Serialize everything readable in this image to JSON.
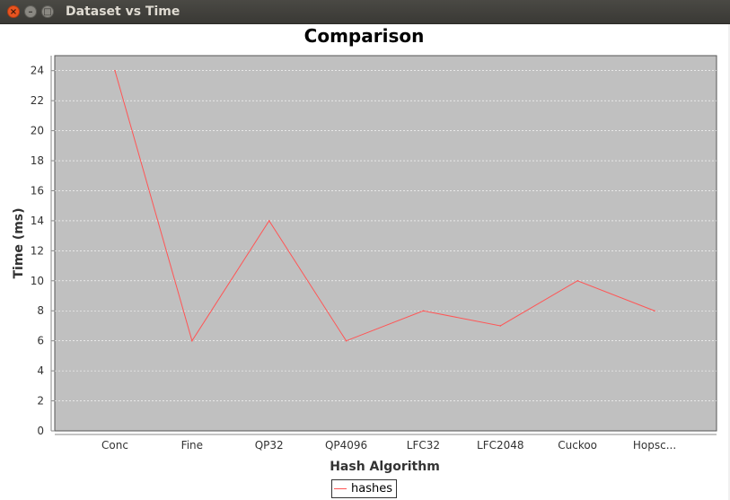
{
  "window": {
    "title": "Dataset vs Time",
    "close_glyph": "×",
    "min_glyph": "–",
    "max_glyph": "□"
  },
  "chart_data": {
    "type": "line",
    "title": "Comparison",
    "xlabel": "Hash Algorithm",
    "ylabel": "Time (ms)",
    "categories": [
      "Conc",
      "Fine",
      "QP32",
      "QP4096",
      "LFC32",
      "LFC2048",
      "Cuckoo",
      "Hopsc..."
    ],
    "series": [
      {
        "name": "hashes",
        "values": [
          24,
          6,
          14,
          6,
          8,
          7,
          10,
          8
        ],
        "color": "#ff5555"
      }
    ],
    "ylim": [
      0,
      25
    ],
    "yticks": [
      0,
      2,
      4,
      6,
      8,
      10,
      12,
      14,
      16,
      18,
      20,
      22,
      24
    ],
    "grid": true,
    "plot_background": "#c0c0c0",
    "legend_position": "bottom"
  }
}
